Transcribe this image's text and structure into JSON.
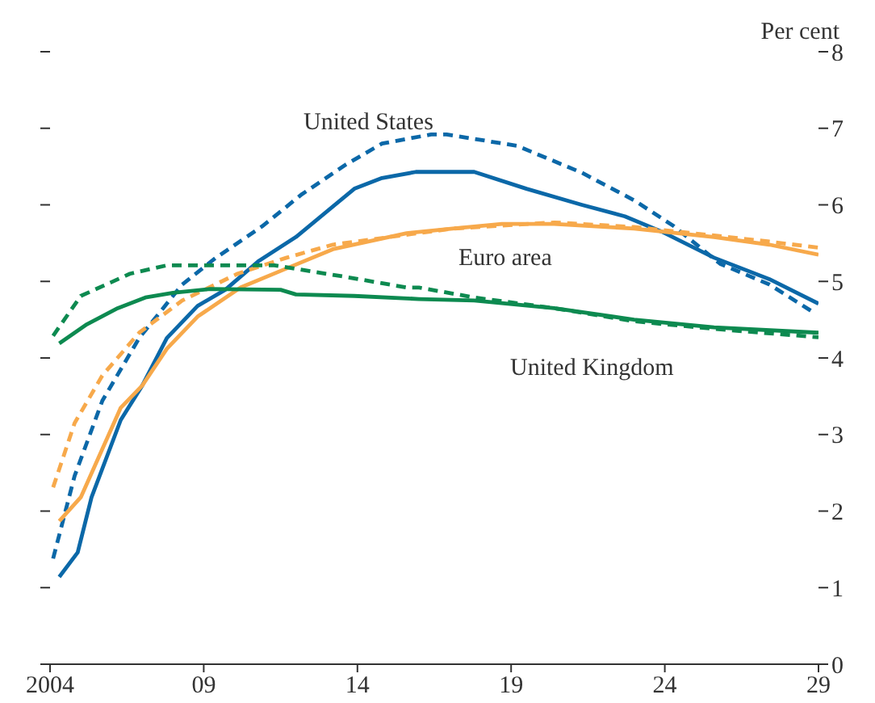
{
  "chart_data": {
    "type": "line",
    "ylabel": "Per cent",
    "xlim": [
      2004,
      2029
    ],
    "xticks": [
      {
        "value": 2004,
        "label": "2004"
      },
      {
        "value": 2009,
        "label": "09"
      },
      {
        "value": 2014,
        "label": "14"
      },
      {
        "value": 2019,
        "label": "19"
      },
      {
        "value": 2024,
        "label": "24"
      },
      {
        "value": 2029,
        "label": "29"
      }
    ],
    "ylim": [
      0,
      8
    ],
    "yticks": [
      0,
      1,
      2,
      3,
      4,
      5,
      6,
      7,
      8
    ],
    "grid": false,
    "legend": false,
    "marker": "none",
    "series": [
      {
        "name": "United States",
        "color": "#0b68a8",
        "line_style": "solid",
        "x": [
          2004.3,
          2004.9,
          2005.35,
          2006.3,
          2007.0,
          2007.8,
          2008.8,
          2009.7,
          2010.8,
          2012.0,
          2013.9,
          2014.8,
          2015.9,
          2017.8,
          2019.5,
          2021.3,
          2022.7,
          2023.9,
          2025.6,
          2027.4,
          2029
        ],
        "values": [
          1.14,
          1.46,
          2.18,
          3.19,
          3.64,
          4.26,
          4.68,
          4.89,
          5.27,
          5.58,
          6.21,
          6.35,
          6.43,
          6.43,
          6.21,
          6.0,
          5.85,
          5.65,
          5.31,
          5.03,
          4.71
        ]
      },
      {
        "color": "#0b68a8",
        "line_style": "dashed",
        "x": [
          2004.1,
          2004.8,
          2005.7,
          2006.9,
          2008.3,
          2009.4,
          2010.9,
          2012.2,
          2013.6,
          2014.8,
          2016.4,
          2016.9,
          2019.2,
          2021.3,
          2023.0,
          2024.3,
          2025.8,
          2027.4,
          2028.9
        ],
        "values": [
          1.38,
          2.46,
          3.44,
          4.26,
          4.96,
          5.31,
          5.72,
          6.14,
          6.52,
          6.8,
          6.92,
          6.92,
          6.77,
          6.42,
          6.06,
          5.72,
          5.23,
          4.96,
          4.58
        ]
      },
      {
        "name": "Euro area",
        "color": "#f7a94b",
        "line_style": "solid",
        "x": [
          2004.3,
          2005.0,
          2006.3,
          2007.0,
          2007.8,
          2008.8,
          2010.2,
          2011.7,
          2013.2,
          2015.6,
          2017.1,
          2018.7,
          2020.4,
          2023.0,
          2025.6,
          2027.4,
          2029
        ],
        "values": [
          1.87,
          2.18,
          3.35,
          3.64,
          4.12,
          4.54,
          4.92,
          5.17,
          5.42,
          5.63,
          5.69,
          5.75,
          5.75,
          5.69,
          5.58,
          5.48,
          5.35
        ]
      },
      {
        "color": "#f7a94b",
        "line_style": "dashed",
        "x": [
          2004.1,
          2004.8,
          2005.7,
          2006.9,
          2008.3,
          2010.1,
          2011.7,
          2013.2,
          2017.1,
          2020.4,
          2023.0,
          2025.6,
          2027.4,
          2029
        ],
        "values": [
          2.31,
          3.15,
          3.77,
          4.33,
          4.75,
          5.1,
          5.31,
          5.48,
          5.69,
          5.77,
          5.71,
          5.6,
          5.52,
          5.44
        ]
      },
      {
        "name": "United Kingdom",
        "color": "#0d8a50",
        "line_style": "solid",
        "x": [
          2004.3,
          2005.2,
          2006.2,
          2007.1,
          2008.0,
          2009.2,
          2011.5,
          2012.0,
          2013.9,
          2016.0,
          2017.8,
          2020.4,
          2023.0,
          2025.6,
          2029
        ],
        "values": [
          4.19,
          4.44,
          4.65,
          4.79,
          4.85,
          4.9,
          4.89,
          4.83,
          4.81,
          4.77,
          4.75,
          4.65,
          4.5,
          4.4,
          4.33
        ]
      },
      {
        "color": "#0d8a50",
        "line_style": "dashed",
        "x": [
          2004.1,
          2005.0,
          2006.6,
          2007.8,
          2011.3,
          2013.6,
          2015.6,
          2016.0,
          2017.8,
          2020.4,
          2023.0,
          2025.6,
          2029
        ],
        "values": [
          4.29,
          4.81,
          5.1,
          5.21,
          5.21,
          5.06,
          4.92,
          4.92,
          4.79,
          4.65,
          4.48,
          4.38,
          4.27
        ]
      }
    ]
  }
}
